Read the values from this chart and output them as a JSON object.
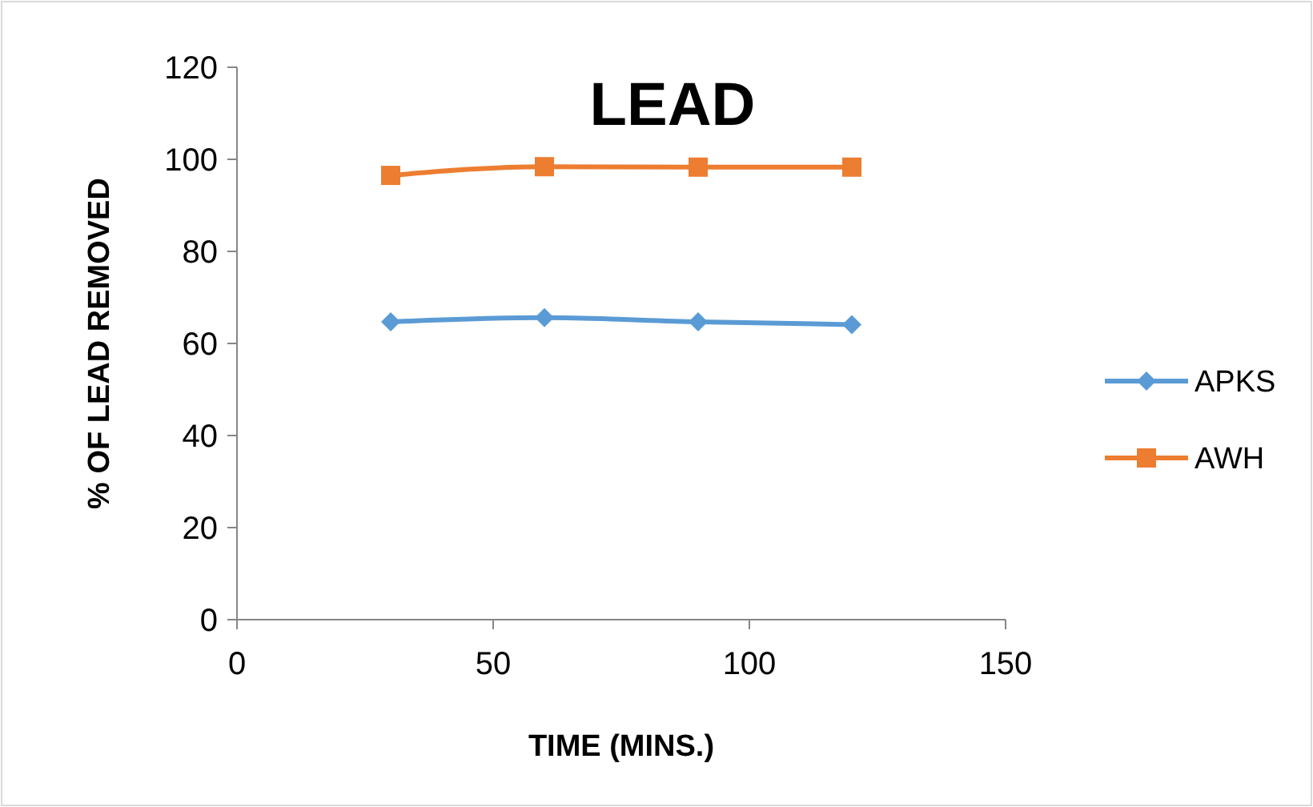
{
  "chart_data": {
    "type": "line",
    "title": "LEAD",
    "xlabel": "TIME (MINS.)",
    "ylabel": "% OF LEAD REMOVED",
    "x": [
      30,
      60,
      90,
      120
    ],
    "series": [
      {
        "name": "APKS",
        "color": "#5b9bd5",
        "values": [
          64.7,
          65.6,
          64.7,
          64.1
        ],
        "marker": "diamond"
      },
      {
        "name": "AWH",
        "color": "#ed7d31",
        "values": [
          96.5,
          98.4,
          98.3,
          98.3
        ],
        "marker": "square"
      }
    ],
    "xlim": [
      0,
      150
    ],
    "xticks": [
      0,
      50,
      100,
      150
    ],
    "ylim": [
      0,
      120
    ],
    "yticks": [
      0,
      20,
      40,
      60,
      80,
      100,
      120
    ],
    "grid": false,
    "legend": "right",
    "line_style": "solid"
  }
}
